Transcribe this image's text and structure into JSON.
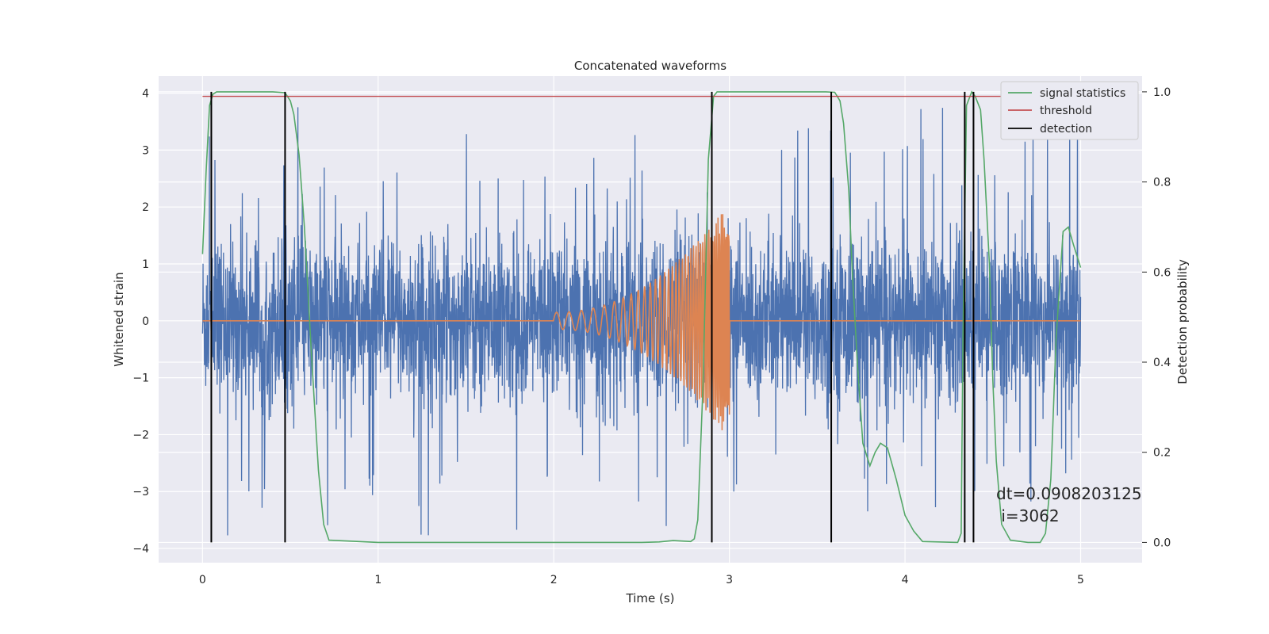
{
  "chart_data": {
    "type": "line",
    "title": "Concatenated waveforms",
    "xlabel": "Time (s)",
    "ylabel": "Whitened strain",
    "y2label": "Detection probability",
    "xlim": [
      -0.25,
      5.35
    ],
    "ylim": [
      -4.25,
      4.3
    ],
    "y2lim": [
      -0.045,
      1.035
    ],
    "x_ticks": [
      0,
      1,
      2,
      3,
      4,
      5
    ],
    "y_ticks": [
      -4,
      -3,
      -2,
      -1,
      0,
      1,
      2,
      3,
      4
    ],
    "y2_ticks": [
      0.0,
      0.2,
      0.4,
      0.6,
      0.8,
      1.0
    ],
    "x_tick_labels": [
      "0",
      "1",
      "2",
      "3",
      "4",
      "5"
    ],
    "y_tick_labels": [
      "−4",
      "−3",
      "−2",
      "−1",
      "0",
      "1",
      "2",
      "3",
      "4"
    ],
    "y2_tick_labels": [
      "0.0",
      "0.2",
      "0.4",
      "0.6",
      "0.8",
      "1.0"
    ],
    "grid": true,
    "legend_position": "top-right",
    "series": [
      {
        "name": "",
        "axis": "left",
        "color": "#4c72b0",
        "kind": "noise",
        "x_range": [
          0,
          5
        ],
        "typical_amplitude": 1.4,
        "peak_amplitude": 3.9
      },
      {
        "name": "",
        "axis": "left",
        "color": "#dd8452",
        "kind": "chirp",
        "x_range": [
          0,
          5
        ],
        "chirp_start": 2.0,
        "chirp_end": 3.0,
        "start_amplitude": 0.15,
        "end_amplitude": 2.1
      },
      {
        "name": "signal statistics",
        "axis": "right",
        "color": "#55a868",
        "x": [
          0.0,
          0.02,
          0.04,
          0.06,
          0.08,
          0.1,
          0.2,
          0.3,
          0.4,
          0.47,
          0.5,
          0.52,
          0.55,
          0.58,
          0.62,
          0.66,
          0.69,
          0.72,
          1.0,
          1.5,
          2.0,
          2.5,
          2.6,
          2.68,
          2.73,
          2.78,
          2.8,
          2.82,
          2.85,
          2.88,
          2.91,
          2.93,
          2.96,
          3.0,
          3.2,
          3.4,
          3.55,
          3.6,
          3.63,
          3.65,
          3.68,
          3.7,
          3.73,
          3.76,
          3.8,
          3.83,
          3.86,
          3.9,
          3.95,
          4.0,
          4.05,
          4.1,
          4.3,
          4.32,
          4.33,
          4.35,
          4.38,
          4.4,
          4.43,
          4.45,
          4.48,
          4.5,
          4.52,
          4.55,
          4.6,
          4.7,
          4.77,
          4.8,
          4.83,
          4.86,
          4.9,
          4.93,
          4.96,
          5.0
        ],
        "values": [
          0.64,
          0.82,
          0.97,
          0.995,
          1.0,
          1.0,
          1.0,
          1.0,
          1.0,
          0.998,
          0.98,
          0.95,
          0.86,
          0.7,
          0.42,
          0.16,
          0.04,
          0.005,
          0.0,
          0.0,
          0.0,
          0.0,
          0.001,
          0.004,
          0.003,
          0.002,
          0.008,
          0.05,
          0.35,
          0.85,
          0.99,
          1.0,
          1.0,
          1.0,
          1.0,
          1.0,
          1.0,
          0.999,
          0.98,
          0.93,
          0.78,
          0.6,
          0.39,
          0.22,
          0.17,
          0.2,
          0.22,
          0.21,
          0.14,
          0.06,
          0.025,
          0.002,
          0.0,
          0.02,
          0.45,
          0.97,
          1.0,
          0.99,
          0.96,
          0.85,
          0.62,
          0.36,
          0.18,
          0.04,
          0.005,
          0.0,
          0.0,
          0.02,
          0.14,
          0.45,
          0.69,
          0.7,
          0.66,
          0.61
        ]
      },
      {
        "name": "threshold",
        "axis": "right",
        "color": "#c44e52",
        "x": [
          0,
          5
        ],
        "values": [
          0.99,
          0.99
        ]
      },
      {
        "name": "detection",
        "axis": "right",
        "color": "#000000",
        "kind": "vlines",
        "x": [
          0.05,
          0.47,
          2.9,
          3.58,
          4.34,
          4.39
        ],
        "y_range": [
          0.0,
          1.0
        ]
      }
    ],
    "annotations": [
      "dt=0.0908203125",
      " i=3062"
    ]
  }
}
